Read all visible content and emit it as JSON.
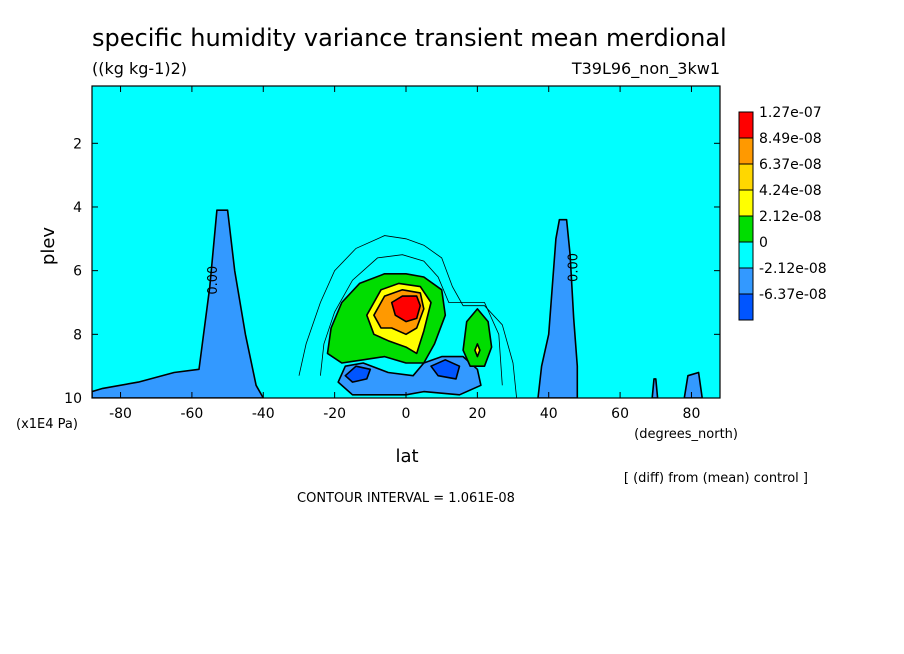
{
  "chart_data": {
    "type": "heatmap",
    "title": "specific humidity variance transient mean merdional",
    "units": "((kg kg-1)2)",
    "run_label": "T39L96_non_3kw1",
    "xlabel": "lat",
    "x_units": "(degrees_north)",
    "ylabel": "plev",
    "y_units": "(x1E4 Pa)",
    "xlim": [
      -88,
      88
    ],
    "ylim": [
      10,
      0.2
    ],
    "xticks": [
      -80,
      -60,
      -40,
      -20,
      0,
      20,
      40,
      60,
      80
    ],
    "xtick_labels": [
      "-80",
      "-60",
      "-40",
      "-20",
      "0",
      "20",
      "40",
      "60",
      "80"
    ],
    "yticks": [
      2,
      4,
      6,
      8,
      10
    ],
    "ytick_labels": [
      "2",
      "4",
      "6",
      "8",
      "10"
    ],
    "contour_interval_text": "CONTOUR INTERVAL = 1.061E-08",
    "diff_note": "[ (diff) from (mean) control ]",
    "contour_label": "0.00",
    "colorbar": {
      "levels": [
        "1.27e-07",
        "8.49e-08",
        "6.37e-08",
        "4.24e-08",
        "2.12e-08",
        "0",
        "-2.12e-08",
        "-6.37e-08"
      ],
      "colors": [
        "#ff0000",
        "#ff9900",
        "#ffd700",
        "#ffff00",
        "#00dd00",
        "#00ffff",
        "#3399ff",
        "#0055ff"
      ]
    },
    "regions": [
      {
        "name": "background",
        "value_range": "0 to 2.12e-08",
        "color": "#00ffff"
      },
      {
        "name": "southern-negative-tongue",
        "color": "#3399ff",
        "polygon": [
          [
            -88,
            9.8
          ],
          [
            -85,
            9.7
          ],
          [
            -75,
            9.5
          ],
          [
            -65,
            9.2
          ],
          [
            -58,
            9.1
          ],
          [
            -55,
            6.5
          ],
          [
            -53,
            4.1
          ],
          [
            -50,
            4.1
          ],
          [
            -48,
            6.0
          ],
          [
            -45,
            8.0
          ],
          [
            -42,
            9.6
          ],
          [
            -40,
            10
          ],
          [
            -88,
            10
          ]
        ]
      },
      {
        "name": "northern-negative-tongue",
        "color": "#3399ff",
        "polygon": [
          [
            37,
            10
          ],
          [
            38,
            9.0
          ],
          [
            40,
            8.0
          ],
          [
            41,
            6.5
          ],
          [
            42,
            5.0
          ],
          [
            43,
            4.4
          ],
          [
            45,
            4.4
          ],
          [
            46,
            5.5
          ],
          [
            47,
            7.5
          ],
          [
            48,
            9.0
          ],
          [
            48,
            10
          ]
        ]
      },
      {
        "name": "north-small-negative-a",
        "color": "#3399ff",
        "polygon": [
          [
            69,
            10
          ],
          [
            69.5,
            9.4
          ],
          [
            70,
            9.4
          ],
          [
            70.5,
            10
          ]
        ]
      },
      {
        "name": "north-small-negative-b",
        "color": "#3399ff",
        "polygon": [
          [
            78,
            10
          ],
          [
            79,
            9.3
          ],
          [
            82,
            9.2
          ],
          [
            83,
            10
          ]
        ]
      },
      {
        "name": "central-low-negative",
        "color": "#3399ff",
        "polygon": [
          [
            -19,
            9.5
          ],
          [
            -17,
            9.0
          ],
          [
            -12,
            8.9
          ],
          [
            -5,
            9.2
          ],
          [
            2,
            9.3
          ],
          [
            5,
            8.9
          ],
          [
            10,
            8.7
          ],
          [
            16,
            8.7
          ],
          [
            20,
            9.1
          ],
          [
            21,
            9.6
          ],
          [
            15,
            9.9
          ],
          [
            5,
            9.8
          ],
          [
            0,
            9.9
          ],
          [
            -5,
            9.9
          ],
          [
            -15,
            9.9
          ]
        ]
      },
      {
        "name": "central-strong-negative-left",
        "color": "#0055ff",
        "polygon": [
          [
            -17,
            9.3
          ],
          [
            -14,
            9.0
          ],
          [
            -10,
            9.1
          ],
          [
            -11,
            9.4
          ],
          [
            -15,
            9.5
          ]
        ]
      },
      {
        "name": "central-strong-negative-right",
        "color": "#0055ff",
        "polygon": [
          [
            7,
            9.0
          ],
          [
            11,
            8.8
          ],
          [
            15,
            9.0
          ],
          [
            14,
            9.4
          ],
          [
            9,
            9.3
          ]
        ]
      },
      {
        "name": "central-green-maximum",
        "color": "#00dd00",
        "polygon": [
          [
            -22,
            8.6
          ],
          [
            -21,
            7.8
          ],
          [
            -18,
            7.0
          ],
          [
            -13,
            6.4
          ],
          [
            -6,
            6.1
          ],
          [
            0,
            6.1
          ],
          [
            5,
            6.2
          ],
          [
            10,
            6.6
          ],
          [
            11,
            7.4
          ],
          [
            8,
            8.3
          ],
          [
            5,
            8.9
          ],
          [
            0,
            8.9
          ],
          [
            -6,
            8.7
          ],
          [
            -12,
            8.8
          ],
          [
            -18,
            8.9
          ]
        ]
      },
      {
        "name": "north-green-blob",
        "color": "#00dd00",
        "polygon": [
          [
            16,
            8.5
          ],
          [
            17,
            7.6
          ],
          [
            20,
            7.2
          ],
          [
            23,
            7.6
          ],
          [
            24,
            8.4
          ],
          [
            22,
            9.0
          ],
          [
            18,
            9.0
          ]
        ]
      },
      {
        "name": "yellow-core",
        "color": "#ffff00",
        "polygon": [
          [
            -11,
            7.4
          ],
          [
            -7,
            6.6
          ],
          [
            -2,
            6.4
          ],
          [
            4,
            6.5
          ],
          [
            7,
            7.0
          ],
          [
            5,
            7.9
          ],
          [
            3,
            8.6
          ],
          [
            0,
            8.4
          ],
          [
            -5,
            8.2
          ],
          [
            -9,
            8.0
          ]
        ]
      },
      {
        "name": "orange-core",
        "color": "#ff9900",
        "polygon": [
          [
            -9,
            7.4
          ],
          [
            -6,
            6.8
          ],
          [
            -1,
            6.6
          ],
          [
            4,
            6.7
          ],
          [
            5,
            7.2
          ],
          [
            3,
            7.8
          ],
          [
            0,
            8.0
          ],
          [
            -4,
            7.8
          ],
          [
            -7,
            7.8
          ]
        ]
      },
      {
        "name": "red-maximum",
        "color": "#ff0000",
        "polygon": [
          [
            -4,
            7.0
          ],
          [
            -1,
            6.8
          ],
          [
            3,
            6.8
          ],
          [
            4,
            7.1
          ],
          [
            3,
            7.5
          ],
          [
            0,
            7.6
          ],
          [
            -3,
            7.4
          ]
        ]
      },
      {
        "name": "yellow-dot",
        "color": "#ffff00",
        "polygon": [
          [
            19.3,
            8.5
          ],
          [
            20,
            8.3
          ],
          [
            20.7,
            8.5
          ],
          [
            20,
            8.7
          ]
        ]
      }
    ],
    "contour_lines": [
      {
        "name": "outer-positive-contour",
        "points": [
          [
            -30,
            9.3
          ],
          [
            -28,
            8.3
          ],
          [
            -24,
            7.0
          ],
          [
            -20,
            6.0
          ],
          [
            -14,
            5.3
          ],
          [
            -6,
            4.9
          ],
          [
            0,
            5.0
          ],
          [
            5,
            5.2
          ],
          [
            10,
            5.6
          ],
          [
            13,
            6.5
          ],
          [
            16,
            7.1
          ],
          [
            22,
            7.1
          ],
          [
            27,
            7.7
          ],
          [
            30,
            8.9
          ],
          [
            31,
            10
          ]
        ]
      },
      {
        "name": "mid-positive-contour",
        "points": [
          [
            -24,
            9.3
          ],
          [
            -23,
            8.3
          ],
          [
            -20,
            7.3
          ],
          [
            -15,
            6.3
          ],
          [
            -8,
            5.6
          ],
          [
            -1,
            5.5
          ],
          [
            5,
            5.7
          ],
          [
            9,
            6.2
          ],
          [
            12,
            7.0
          ],
          [
            16,
            7.0
          ],
          [
            22,
            7.0
          ],
          [
            26,
            8.0
          ],
          [
            27,
            9.6
          ]
        ]
      }
    ]
  }
}
